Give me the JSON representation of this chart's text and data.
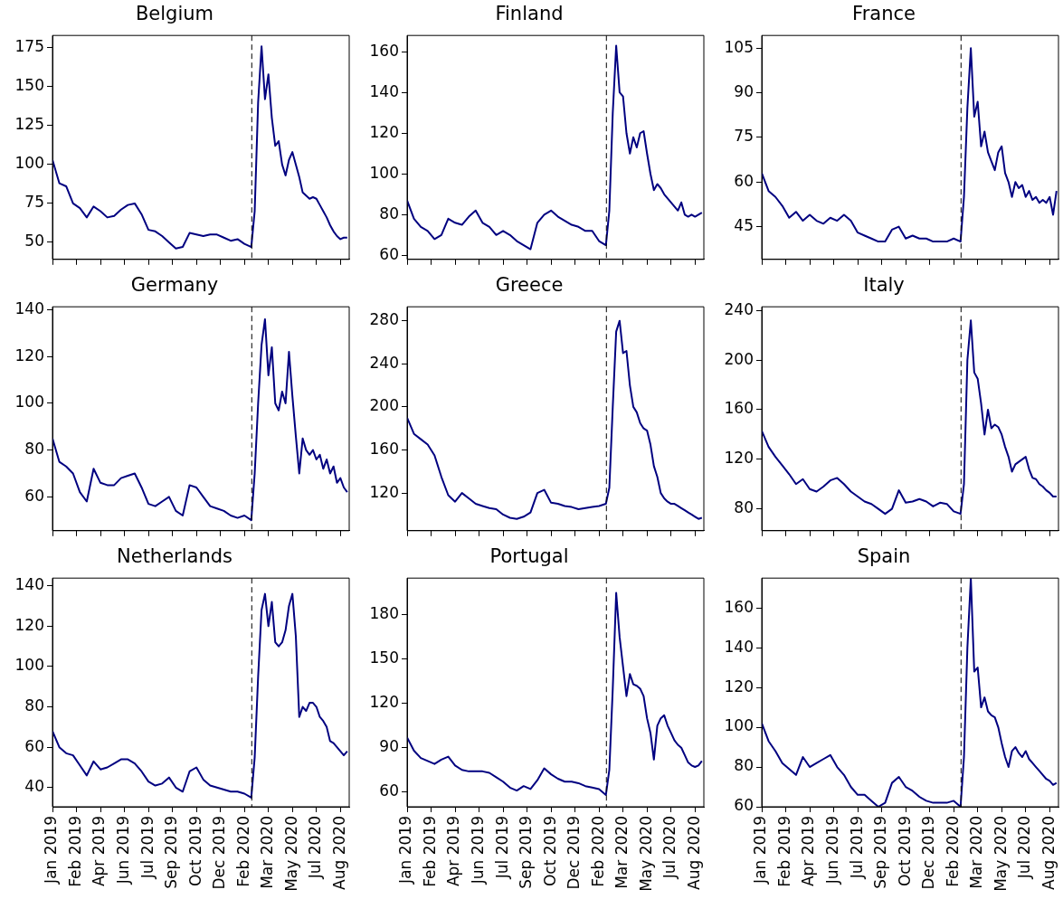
{
  "chart_data": [
    {
      "type": "line",
      "title": "Belgium",
      "tick_labels": "y",
      "grid": false,
      "marker": "none",
      "line_style": "solid",
      "legend": false,
      "x": [
        "2019-01-10",
        "2019-01-24",
        "2019-02-07",
        "2019-02-21",
        "2019-03-07",
        "2019-03-21",
        "2019-04-04",
        "2019-04-18",
        "2019-05-02",
        "2019-05-16",
        "2019-05-30",
        "2019-06-13",
        "2019-06-27",
        "2019-07-11",
        "2019-07-25",
        "2019-08-08",
        "2019-08-22",
        "2019-09-05",
        "2019-09-19",
        "2019-10-03",
        "2019-10-17",
        "2019-10-31",
        "2019-11-14",
        "2019-11-28",
        "2019-12-12",
        "2019-12-26",
        "2020-01-09",
        "2020-01-23",
        "2020-02-06",
        "2020-02-20",
        "2020-02-27",
        "2020-03-05",
        "2020-03-12",
        "2020-03-19",
        "2020-03-26",
        "2020-04-02",
        "2020-04-09",
        "2020-04-16",
        "2020-04-23",
        "2020-04-30",
        "2020-05-07",
        "2020-05-14",
        "2020-05-21",
        "2020-05-28",
        "2020-06-04",
        "2020-06-11",
        "2020-06-18",
        "2020-06-25",
        "2020-07-02",
        "2020-07-09",
        "2020-07-16",
        "2020-07-23",
        "2020-07-30",
        "2020-08-06",
        "2020-08-13",
        "2020-08-20",
        "2020-08-27",
        "2020-09-03"
      ],
      "series": [
        {
          "color": "#000080",
          "values": [
            103,
            88,
            86,
            75,
            72,
            66,
            73,
            70,
            66,
            67,
            71,
            74,
            75,
            68,
            58,
            57,
            54,
            50,
            46,
            47,
            56,
            55,
            54,
            55,
            55,
            53,
            51,
            52,
            49,
            47,
            70,
            140,
            176,
            142,
            158,
            130,
            112,
            115,
            100,
            93,
            103,
            108,
            100,
            92,
            82,
            80,
            78,
            79,
            78,
            74,
            70,
            66,
            61,
            57,
            54,
            52,
            53,
            53
          ]
        }
      ],
      "xlim": [
        "2019-01-10",
        "2020-09-07"
      ],
      "xticks": [
        {
          "value": "2019-01-10",
          "label": null
        },
        {
          "value": "2019-02-28",
          "label": null
        },
        {
          "value": "2019-04-18",
          "label": null
        },
        {
          "value": "2019-06-06",
          "label": null
        },
        {
          "value": "2019-07-25",
          "label": null
        },
        {
          "value": "2019-09-12",
          "label": null
        },
        {
          "value": "2019-10-31",
          "label": null
        },
        {
          "value": "2019-12-19",
          "label": null
        },
        {
          "value": "2020-02-06",
          "label": null
        },
        {
          "value": "2020-03-26",
          "label": null
        },
        {
          "value": "2020-05-14",
          "label": null
        },
        {
          "value": "2020-07-02",
          "label": null
        },
        {
          "value": "2020-08-20",
          "label": null
        }
      ],
      "ylim": [
        39,
        183
      ],
      "yticks": [
        50,
        75,
        100,
        125,
        150,
        175
      ],
      "ref_lines": [
        {
          "axis": "x",
          "value": "2020-02-21",
          "color": "#000000",
          "line_style": "dashed"
        }
      ]
    },
    {
      "type": "line",
      "title": "Finland",
      "tick_labels": "y",
      "grid": false,
      "marker": "none",
      "line_style": "solid",
      "legend": false,
      "x": [
        "2019-01-10",
        "2019-01-24",
        "2019-02-07",
        "2019-02-21",
        "2019-03-07",
        "2019-03-21",
        "2019-04-04",
        "2019-04-18",
        "2019-05-02",
        "2019-05-16",
        "2019-05-30",
        "2019-06-13",
        "2019-06-27",
        "2019-07-11",
        "2019-07-25",
        "2019-08-08",
        "2019-08-22",
        "2019-09-05",
        "2019-09-19",
        "2019-10-03",
        "2019-10-17",
        "2019-10-31",
        "2019-11-14",
        "2019-11-28",
        "2019-12-12",
        "2019-12-26",
        "2020-01-09",
        "2020-01-23",
        "2020-02-06",
        "2020-02-20",
        "2020-02-27",
        "2020-03-05",
        "2020-03-12",
        "2020-03-19",
        "2020-03-26",
        "2020-04-02",
        "2020-04-09",
        "2020-04-16",
        "2020-04-23",
        "2020-04-30",
        "2020-05-07",
        "2020-05-14",
        "2020-05-21",
        "2020-05-28",
        "2020-06-04",
        "2020-06-11",
        "2020-06-18",
        "2020-06-25",
        "2020-07-02",
        "2020-07-09",
        "2020-07-16",
        "2020-07-23",
        "2020-07-30",
        "2020-08-06",
        "2020-08-13",
        "2020-08-20",
        "2020-08-27",
        "2020-09-03"
      ],
      "series": [
        {
          "color": "#000080",
          "values": [
            87,
            78,
            74,
            72,
            68,
            70,
            78,
            76,
            75,
            79,
            82,
            76,
            74,
            70,
            72,
            70,
            67,
            65,
            63,
            76,
            80,
            82,
            79,
            77,
            75,
            74,
            72,
            72,
            67,
            65,
            82,
            130,
            163,
            140,
            138,
            120,
            110,
            118,
            113,
            120,
            121,
            110,
            100,
            92,
            95,
            93,
            90,
            88,
            86,
            84,
            82,
            86,
            80,
            79,
            80,
            79,
            80,
            81
          ]
        }
      ],
      "xlim": [
        "2019-01-10",
        "2020-09-07"
      ],
      "xticks": [
        {
          "value": "2019-01-10",
          "label": null
        },
        {
          "value": "2019-02-28",
          "label": null
        },
        {
          "value": "2019-04-18",
          "label": null
        },
        {
          "value": "2019-06-06",
          "label": null
        },
        {
          "value": "2019-07-25",
          "label": null
        },
        {
          "value": "2019-09-12",
          "label": null
        },
        {
          "value": "2019-10-31",
          "label": null
        },
        {
          "value": "2019-12-19",
          "label": null
        },
        {
          "value": "2020-02-06",
          "label": null
        },
        {
          "value": "2020-03-26",
          "label": null
        },
        {
          "value": "2020-05-14",
          "label": null
        },
        {
          "value": "2020-07-02",
          "label": null
        },
        {
          "value": "2020-08-20",
          "label": null
        }
      ],
      "ylim": [
        58,
        168
      ],
      "yticks": [
        60,
        80,
        100,
        120,
        140,
        160
      ],
      "ref_lines": [
        {
          "axis": "x",
          "value": "2020-02-21",
          "color": "#000000",
          "line_style": "dashed"
        }
      ]
    },
    {
      "type": "line",
      "title": "France",
      "tick_labels": "y",
      "grid": false,
      "marker": "none",
      "line_style": "solid",
      "legend": false,
      "x": [
        "2019-01-10",
        "2019-01-24",
        "2019-02-07",
        "2019-02-21",
        "2019-03-07",
        "2019-03-21",
        "2019-04-04",
        "2019-04-18",
        "2019-05-02",
        "2019-05-16",
        "2019-05-30",
        "2019-06-13",
        "2019-06-27",
        "2019-07-11",
        "2019-07-25",
        "2019-08-08",
        "2019-08-22",
        "2019-09-05",
        "2019-09-19",
        "2019-10-03",
        "2019-10-17",
        "2019-10-31",
        "2019-11-14",
        "2019-11-28",
        "2019-12-12",
        "2019-12-26",
        "2020-01-09",
        "2020-01-23",
        "2020-02-06",
        "2020-02-20",
        "2020-02-27",
        "2020-03-05",
        "2020-03-12",
        "2020-03-19",
        "2020-03-26",
        "2020-04-02",
        "2020-04-09",
        "2020-04-16",
        "2020-04-23",
        "2020-04-30",
        "2020-05-07",
        "2020-05-14",
        "2020-05-21",
        "2020-05-28",
        "2020-06-04",
        "2020-06-11",
        "2020-06-18",
        "2020-06-25",
        "2020-07-02",
        "2020-07-09",
        "2020-07-16",
        "2020-07-23",
        "2020-07-30",
        "2020-08-06",
        "2020-08-13",
        "2020-08-20",
        "2020-08-27",
        "2020-09-03"
      ],
      "series": [
        {
          "color": "#000080",
          "values": [
            63,
            57,
            55,
            52,
            48,
            50,
            47,
            49,
            47,
            46,
            48,
            47,
            49,
            47,
            43,
            42,
            41,
            40,
            40,
            44,
            45,
            41,
            42,
            41,
            41,
            40,
            40,
            40,
            41,
            40,
            55,
            85,
            105,
            82,
            87,
            72,
            77,
            70,
            67,
            64,
            70,
            72,
            63,
            60,
            55,
            60,
            58,
            59,
            55,
            57,
            54,
            55,
            53,
            54,
            53,
            55,
            49,
            57
          ]
        }
      ],
      "xlim": [
        "2019-01-10",
        "2020-09-07"
      ],
      "xticks": [
        {
          "value": "2019-01-10",
          "label": null
        },
        {
          "value": "2019-02-28",
          "label": null
        },
        {
          "value": "2019-04-18",
          "label": null
        },
        {
          "value": "2019-06-06",
          "label": null
        },
        {
          "value": "2019-07-25",
          "label": null
        },
        {
          "value": "2019-09-12",
          "label": null
        },
        {
          "value": "2019-10-31",
          "label": null
        },
        {
          "value": "2019-12-19",
          "label": null
        },
        {
          "value": "2020-02-06",
          "label": null
        },
        {
          "value": "2020-03-26",
          "label": null
        },
        {
          "value": "2020-05-14",
          "label": null
        },
        {
          "value": "2020-07-02",
          "label": null
        },
        {
          "value": "2020-08-20",
          "label": null
        }
      ],
      "ylim": [
        34,
        109.3
      ],
      "yticks": [
        45,
        60,
        75,
        90,
        105
      ],
      "ref_lines": [
        {
          "axis": "x",
          "value": "2020-02-21",
          "color": "#000000",
          "line_style": "dashed"
        }
      ]
    },
    {
      "type": "line",
      "title": "Germany",
      "tick_labels": "y",
      "grid": false,
      "marker": "none",
      "line_style": "solid",
      "legend": false,
      "x": [
        "2019-01-10",
        "2019-01-24",
        "2019-02-07",
        "2019-02-21",
        "2019-03-07",
        "2019-03-21",
        "2019-04-04",
        "2019-04-18",
        "2019-05-02",
        "2019-05-16",
        "2019-05-30",
        "2019-06-13",
        "2019-06-27",
        "2019-07-11",
        "2019-07-25",
        "2019-08-08",
        "2019-08-22",
        "2019-09-05",
        "2019-09-19",
        "2019-10-03",
        "2019-10-17",
        "2019-10-31",
        "2019-11-14",
        "2019-11-28",
        "2019-12-12",
        "2019-12-26",
        "2020-01-09",
        "2020-01-23",
        "2020-02-06",
        "2020-02-20",
        "2020-02-27",
        "2020-03-05",
        "2020-03-12",
        "2020-03-19",
        "2020-03-26",
        "2020-04-02",
        "2020-04-09",
        "2020-04-16",
        "2020-04-23",
        "2020-04-30",
        "2020-05-07",
        "2020-05-14",
        "2020-05-21",
        "2020-05-28",
        "2020-06-04",
        "2020-06-11",
        "2020-06-18",
        "2020-06-25",
        "2020-07-02",
        "2020-07-09",
        "2020-07-16",
        "2020-07-23",
        "2020-07-30",
        "2020-08-06",
        "2020-08-13",
        "2020-08-20",
        "2020-08-27",
        "2020-09-03"
      ],
      "series": [
        {
          "color": "#000080",
          "values": [
            85,
            75,
            73,
            70,
            62,
            58,
            72,
            66,
            65,
            65,
            68,
            69,
            70,
            64,
            57,
            56,
            58,
            60,
            54,
            52,
            65,
            64,
            60,
            56,
            55,
            54,
            52,
            51,
            52,
            50,
            70,
            100,
            125,
            136,
            112,
            124,
            100,
            97,
            105,
            100,
            122,
            103,
            86,
            70,
            85,
            80,
            78,
            80,
            76,
            78,
            72,
            76,
            70,
            73,
            66,
            68,
            64,
            62
          ]
        }
      ],
      "xlim": [
        "2019-01-10",
        "2020-09-07"
      ],
      "xticks": [
        {
          "value": "2019-01-10",
          "label": null
        },
        {
          "value": "2019-02-28",
          "label": null
        },
        {
          "value": "2019-04-18",
          "label": null
        },
        {
          "value": "2019-06-06",
          "label": null
        },
        {
          "value": "2019-07-25",
          "label": null
        },
        {
          "value": "2019-09-12",
          "label": null
        },
        {
          "value": "2019-10-31",
          "label": null
        },
        {
          "value": "2019-12-19",
          "label": null
        },
        {
          "value": "2020-02-06",
          "label": null
        },
        {
          "value": "2020-03-26",
          "label": null
        },
        {
          "value": "2020-05-14",
          "label": null
        },
        {
          "value": "2020-07-02",
          "label": null
        },
        {
          "value": "2020-08-20",
          "label": null
        }
      ],
      "ylim": [
        45.5,
        141.3
      ],
      "yticks": [
        60,
        80,
        100,
        120,
        140
      ],
      "ref_lines": [
        {
          "axis": "x",
          "value": "2020-02-21",
          "color": "#000000",
          "line_style": "dashed"
        }
      ]
    },
    {
      "type": "line",
      "title": "Greece",
      "tick_labels": "y",
      "grid": false,
      "marker": "none",
      "line_style": "solid",
      "legend": false,
      "x": [
        "2019-01-10",
        "2019-01-24",
        "2019-02-07",
        "2019-02-21",
        "2019-03-07",
        "2019-03-21",
        "2019-04-04",
        "2019-04-18",
        "2019-05-02",
        "2019-05-16",
        "2019-05-30",
        "2019-06-13",
        "2019-06-27",
        "2019-07-11",
        "2019-07-25",
        "2019-08-08",
        "2019-08-22",
        "2019-09-05",
        "2019-09-19",
        "2019-10-03",
        "2019-10-17",
        "2019-10-31",
        "2019-11-14",
        "2019-11-28",
        "2019-12-12",
        "2019-12-26",
        "2020-01-09",
        "2020-01-23",
        "2020-02-06",
        "2020-02-20",
        "2020-02-27",
        "2020-03-05",
        "2020-03-12",
        "2020-03-19",
        "2020-03-26",
        "2020-04-02",
        "2020-04-09",
        "2020-04-16",
        "2020-04-23",
        "2020-04-30",
        "2020-05-07",
        "2020-05-14",
        "2020-05-21",
        "2020-05-28",
        "2020-06-04",
        "2020-06-11",
        "2020-06-18",
        "2020-06-25",
        "2020-07-02",
        "2020-07-09",
        "2020-07-16",
        "2020-07-23",
        "2020-07-30",
        "2020-08-06",
        "2020-08-13",
        "2020-08-20",
        "2020-08-27",
        "2020-09-03"
      ],
      "series": [
        {
          "color": "#000080",
          "values": [
            190,
            175,
            170,
            165,
            155,
            135,
            118,
            112,
            120,
            115,
            110,
            108,
            106,
            105,
            100,
            97,
            96,
            98,
            102,
            120,
            123,
            111,
            110,
            108,
            107,
            105,
            106,
            107,
            108,
            110,
            125,
            200,
            270,
            280,
            250,
            252,
            220,
            200,
            195,
            185,
            180,
            178,
            165,
            145,
            135,
            120,
            115,
            112,
            110,
            110,
            108,
            106,
            104,
            102,
            100,
            98,
            96,
            97
          ]
        }
      ],
      "xlim": [
        "2019-01-10",
        "2020-09-07"
      ],
      "xticks": [
        {
          "value": "2019-01-10",
          "label": null
        },
        {
          "value": "2019-02-28",
          "label": null
        },
        {
          "value": "2019-04-18",
          "label": null
        },
        {
          "value": "2019-06-06",
          "label": null
        },
        {
          "value": "2019-07-25",
          "label": null
        },
        {
          "value": "2019-09-12",
          "label": null
        },
        {
          "value": "2019-10-31",
          "label": null
        },
        {
          "value": "2019-12-19",
          "label": null
        },
        {
          "value": "2020-02-06",
          "label": null
        },
        {
          "value": "2020-03-26",
          "label": null
        },
        {
          "value": "2020-05-14",
          "label": null
        },
        {
          "value": "2020-07-02",
          "label": null
        },
        {
          "value": "2020-08-20",
          "label": null
        }
      ],
      "ylim": [
        85,
        293
      ],
      "yticks": [
        120,
        160,
        200,
        240,
        280
      ],
      "ref_lines": [
        {
          "axis": "x",
          "value": "2020-02-21",
          "color": "#000000",
          "line_style": "dashed"
        }
      ]
    },
    {
      "type": "line",
      "title": "Italy",
      "tick_labels": "y",
      "grid": false,
      "marker": "none",
      "line_style": "solid",
      "legend": false,
      "x": [
        "2019-01-10",
        "2019-01-24",
        "2019-02-07",
        "2019-02-21",
        "2019-03-07",
        "2019-03-21",
        "2019-04-04",
        "2019-04-18",
        "2019-05-02",
        "2019-05-16",
        "2019-05-30",
        "2019-06-13",
        "2019-06-27",
        "2019-07-11",
        "2019-07-25",
        "2019-08-08",
        "2019-08-22",
        "2019-09-05",
        "2019-09-19",
        "2019-10-03",
        "2019-10-17",
        "2019-10-31",
        "2019-11-14",
        "2019-11-28",
        "2019-12-12",
        "2019-12-26",
        "2020-01-09",
        "2020-01-23",
        "2020-02-06",
        "2020-02-20",
        "2020-02-27",
        "2020-03-05",
        "2020-03-12",
        "2020-03-19",
        "2020-03-26",
        "2020-04-02",
        "2020-04-09",
        "2020-04-16",
        "2020-04-23",
        "2020-04-30",
        "2020-05-07",
        "2020-05-14",
        "2020-05-21",
        "2020-05-28",
        "2020-06-04",
        "2020-06-11",
        "2020-06-18",
        "2020-06-25",
        "2020-07-02",
        "2020-07-09",
        "2020-07-16",
        "2020-07-23",
        "2020-07-30",
        "2020-08-06",
        "2020-08-13",
        "2020-08-20",
        "2020-08-27",
        "2020-09-03"
      ],
      "series": [
        {
          "color": "#000080",
          "values": [
            143,
            130,
            122,
            115,
            108,
            100,
            104,
            96,
            94,
            98,
            103,
            105,
            100,
            94,
            90,
            86,
            84,
            80,
            76,
            80,
            95,
            85,
            86,
            88,
            86,
            82,
            85,
            84,
            78,
            76,
            100,
            200,
            232,
            190,
            185,
            165,
            140,
            160,
            145,
            148,
            146,
            140,
            130,
            122,
            110,
            116,
            118,
            120,
            122,
            112,
            105,
            104,
            100,
            98,
            95,
            93,
            90,
            90
          ]
        }
      ],
      "xlim": [
        "2019-01-10",
        "2020-09-07"
      ],
      "xticks": [
        {
          "value": "2019-01-10",
          "label": null
        },
        {
          "value": "2019-02-28",
          "label": null
        },
        {
          "value": "2019-04-18",
          "label": null
        },
        {
          "value": "2019-06-06",
          "label": null
        },
        {
          "value": "2019-07-25",
          "label": null
        },
        {
          "value": "2019-09-12",
          "label": null
        },
        {
          "value": "2019-10-31",
          "label": null
        },
        {
          "value": "2019-12-19",
          "label": null
        },
        {
          "value": "2020-02-06",
          "label": null
        },
        {
          "value": "2020-03-26",
          "label": null
        },
        {
          "value": "2020-05-14",
          "label": null
        },
        {
          "value": "2020-07-02",
          "label": null
        },
        {
          "value": "2020-08-20",
          "label": null
        }
      ],
      "ylim": [
        62.4,
        243
      ],
      "yticks": [
        80,
        120,
        160,
        200,
        240
      ],
      "ref_lines": [
        {
          "axis": "x",
          "value": "2020-02-21",
          "color": "#000000",
          "line_style": "dashed"
        }
      ]
    },
    {
      "type": "line",
      "title": "Netherlands",
      "grid": false,
      "marker": "none",
      "line_style": "solid",
      "legend": false,
      "x": [
        "2019-01-10",
        "2019-01-24",
        "2019-02-07",
        "2019-02-21",
        "2019-03-07",
        "2019-03-21",
        "2019-04-04",
        "2019-04-18",
        "2019-05-02",
        "2019-05-16",
        "2019-05-30",
        "2019-06-13",
        "2019-06-27",
        "2019-07-11",
        "2019-07-25",
        "2019-08-08",
        "2019-08-22",
        "2019-09-05",
        "2019-09-19",
        "2019-10-03",
        "2019-10-17",
        "2019-10-31",
        "2019-11-14",
        "2019-11-28",
        "2019-12-12",
        "2019-12-26",
        "2020-01-09",
        "2020-01-23",
        "2020-02-06",
        "2020-02-20",
        "2020-02-27",
        "2020-03-05",
        "2020-03-12",
        "2020-03-19",
        "2020-03-26",
        "2020-04-02",
        "2020-04-09",
        "2020-04-16",
        "2020-04-23",
        "2020-04-30",
        "2020-05-07",
        "2020-05-14",
        "2020-05-21",
        "2020-05-28",
        "2020-06-04",
        "2020-06-11",
        "2020-06-18",
        "2020-06-25",
        "2020-07-02",
        "2020-07-09",
        "2020-07-16",
        "2020-07-23",
        "2020-07-30",
        "2020-08-06",
        "2020-08-13",
        "2020-08-20",
        "2020-08-27",
        "2020-09-03"
      ],
      "series": [
        {
          "color": "#000080",
          "values": [
            68,
            60,
            57,
            56,
            51,
            46,
            53,
            49,
            50,
            52,
            54,
            54,
            52,
            48,
            43,
            41,
            42,
            45,
            40,
            38,
            48,
            50,
            44,
            41,
            40,
            39,
            38,
            38,
            37,
            35,
            55,
            95,
            128,
            136,
            120,
            132,
            112,
            110,
            112,
            118,
            130,
            136,
            115,
            75,
            80,
            78,
            82,
            82,
            80,
            75,
            73,
            70,
            63,
            62,
            60,
            58,
            56,
            58
          ]
        }
      ],
      "xlim": [
        "2019-01-10",
        "2020-09-07"
      ],
      "xticks": [
        {
          "value": "2019-01-10",
          "label": "Jan 2019"
        },
        {
          "value": "2019-02-28",
          "label": "Feb 2019"
        },
        {
          "value": "2019-04-18",
          "label": "Apr 2019"
        },
        {
          "value": "2019-06-06",
          "label": "Jun 2019"
        },
        {
          "value": "2019-07-25",
          "label": "Jul 2019"
        },
        {
          "value": "2019-09-12",
          "label": "Sep 2019"
        },
        {
          "value": "2019-10-31",
          "label": "Oct 2019"
        },
        {
          "value": "2019-12-19",
          "label": "Dec 2019"
        },
        {
          "value": "2020-02-06",
          "label": "Feb 2020"
        },
        {
          "value": "2020-03-26",
          "label": "Mar 2020"
        },
        {
          "value": "2020-05-14",
          "label": "May 2020"
        },
        {
          "value": "2020-07-02",
          "label": "Jul 2020"
        },
        {
          "value": "2020-08-20",
          "label": "Aug 2020"
        }
      ],
      "ylim": [
        30.5,
        143.8
      ],
      "yticks": [
        40,
        60,
        80,
        100,
        120,
        140
      ],
      "ref_lines": [
        {
          "axis": "x",
          "value": "2020-02-21",
          "color": "#000000",
          "line_style": "dashed"
        }
      ]
    },
    {
      "type": "line",
      "title": "Portugal",
      "grid": false,
      "marker": "none",
      "line_style": "solid",
      "legend": false,
      "x": [
        "2019-01-10",
        "2019-01-24",
        "2019-02-07",
        "2019-02-21",
        "2019-03-07",
        "2019-03-21",
        "2019-04-04",
        "2019-04-18",
        "2019-05-02",
        "2019-05-16",
        "2019-05-30",
        "2019-06-13",
        "2019-06-27",
        "2019-07-11",
        "2019-07-25",
        "2019-08-08",
        "2019-08-22",
        "2019-09-05",
        "2019-09-19",
        "2019-10-03",
        "2019-10-17",
        "2019-10-31",
        "2019-11-14",
        "2019-11-28",
        "2019-12-12",
        "2019-12-26",
        "2020-01-09",
        "2020-01-23",
        "2020-02-06",
        "2020-02-20",
        "2020-02-27",
        "2020-03-05",
        "2020-03-12",
        "2020-03-19",
        "2020-03-26",
        "2020-04-02",
        "2020-04-09",
        "2020-04-16",
        "2020-04-23",
        "2020-04-30",
        "2020-05-07",
        "2020-05-14",
        "2020-05-21",
        "2020-05-28",
        "2020-06-04",
        "2020-06-11",
        "2020-06-18",
        "2020-06-25",
        "2020-07-02",
        "2020-07-09",
        "2020-07-16",
        "2020-07-23",
        "2020-07-30",
        "2020-08-06",
        "2020-08-13",
        "2020-08-20",
        "2020-08-27",
        "2020-09-03"
      ],
      "series": [
        {
          "color": "#000080",
          "values": [
            97,
            88,
            83,
            81,
            79,
            82,
            84,
            78,
            75,
            74,
            74,
            74,
            73,
            70,
            67,
            63,
            61,
            64,
            62,
            68,
            76,
            72,
            69,
            67,
            67,
            66,
            64,
            63,
            62,
            58,
            75,
            130,
            195,
            165,
            145,
            125,
            140,
            133,
            132,
            130,
            125,
            110,
            100,
            82,
            105,
            110,
            112,
            105,
            100,
            95,
            92,
            90,
            85,
            80,
            78,
            77,
            78,
            81
          ]
        }
      ],
      "xlim": [
        "2019-01-10",
        "2020-09-07"
      ],
      "xticks": [
        {
          "value": "2019-01-10",
          "label": "Jan 2019"
        },
        {
          "value": "2019-02-28",
          "label": "Feb 2019"
        },
        {
          "value": "2019-04-18",
          "label": "Apr 2019"
        },
        {
          "value": "2019-06-06",
          "label": "Jun 2019"
        },
        {
          "value": "2019-07-25",
          "label": "Jul 2019"
        },
        {
          "value": "2019-09-12",
          "label": "Sep 2019"
        },
        {
          "value": "2019-10-31",
          "label": "Oct 2019"
        },
        {
          "value": "2019-12-19",
          "label": "Dec 2019"
        },
        {
          "value": "2020-02-06",
          "label": "Feb 2020"
        },
        {
          "value": "2020-03-26",
          "label": "Mar 2020"
        },
        {
          "value": "2020-05-14",
          "label": "May 2020"
        },
        {
          "value": "2020-07-02",
          "label": "Jul 2020"
        },
        {
          "value": "2020-08-20",
          "label": "Aug 2020"
        }
      ],
      "ylim": [
        50,
        205
      ],
      "yticks": [
        60,
        90,
        120,
        150,
        180
      ],
      "ref_lines": [
        {
          "axis": "x",
          "value": "2020-02-21",
          "color": "#000000",
          "line_style": "dashed"
        }
      ]
    },
    {
      "type": "line",
      "title": "Spain",
      "grid": false,
      "marker": "none",
      "line_style": "solid",
      "legend": false,
      "x": [
        "2019-01-10",
        "2019-01-24",
        "2019-02-07",
        "2019-02-21",
        "2019-03-07",
        "2019-03-21",
        "2019-04-04",
        "2019-04-18",
        "2019-05-02",
        "2019-05-16",
        "2019-05-30",
        "2019-06-13",
        "2019-06-27",
        "2019-07-11",
        "2019-07-25",
        "2019-08-08",
        "2019-08-22",
        "2019-09-05",
        "2019-09-19",
        "2019-10-03",
        "2019-10-17",
        "2019-10-31",
        "2019-11-14",
        "2019-11-28",
        "2019-12-12",
        "2019-12-26",
        "2020-01-09",
        "2020-01-23",
        "2020-02-06",
        "2020-02-20",
        "2020-02-27",
        "2020-03-05",
        "2020-03-12",
        "2020-03-19",
        "2020-03-26",
        "2020-04-02",
        "2020-04-09",
        "2020-04-16",
        "2020-04-23",
        "2020-04-30",
        "2020-05-07",
        "2020-05-14",
        "2020-05-21",
        "2020-05-28",
        "2020-06-04",
        "2020-06-11",
        "2020-06-18",
        "2020-06-25",
        "2020-07-02",
        "2020-07-09",
        "2020-07-16",
        "2020-07-23",
        "2020-07-30",
        "2020-08-06",
        "2020-08-13",
        "2020-08-20",
        "2020-08-27",
        "2020-09-03"
      ],
      "series": [
        {
          "color": "#000080",
          "values": [
            102,
            93,
            88,
            82,
            79,
            76,
            85,
            80,
            82,
            84,
            86,
            80,
            76,
            70,
            66,
            66,
            63,
            60,
            62,
            72,
            75,
            70,
            68,
            65,
            63,
            62,
            62,
            62,
            63,
            60,
            85,
            140,
            175,
            128,
            130,
            110,
            115,
            108,
            106,
            105,
            100,
            92,
            85,
            80,
            88,
            90,
            87,
            85,
            88,
            84,
            82,
            80,
            78,
            76,
            74,
            73,
            71,
            72
          ]
        }
      ],
      "xlim": [
        "2019-01-10",
        "2020-09-07"
      ],
      "xticks": [
        {
          "value": "2019-01-10",
          "label": "Jan 2019"
        },
        {
          "value": "2019-02-28",
          "label": "Feb 2019"
        },
        {
          "value": "2019-04-18",
          "label": "Apr 2019"
        },
        {
          "value": "2019-06-06",
          "label": "Jun 2019"
        },
        {
          "value": "2019-07-25",
          "label": "Jul 2019"
        },
        {
          "value": "2019-09-12",
          "label": "Sep 2019"
        },
        {
          "value": "2019-10-31",
          "label": "Oct 2019"
        },
        {
          "value": "2019-12-19",
          "label": "Dec 2019"
        },
        {
          "value": "2020-02-06",
          "label": "Feb 2020"
        },
        {
          "value": "2020-03-26",
          "label": "Mar 2020"
        },
        {
          "value": "2020-05-14",
          "label": "May 2020"
        },
        {
          "value": "2020-07-02",
          "label": "Jul 2020"
        },
        {
          "value": "2020-08-20",
          "label": "Aug 2020"
        }
      ],
      "ylim": [
        60,
        175
      ],
      "yticks": [
        60,
        80,
        100,
        120,
        140,
        160
      ],
      "ref_lines": [
        {
          "axis": "x",
          "value": "2020-02-21",
          "color": "#000000",
          "line_style": "dashed"
        }
      ]
    }
  ]
}
